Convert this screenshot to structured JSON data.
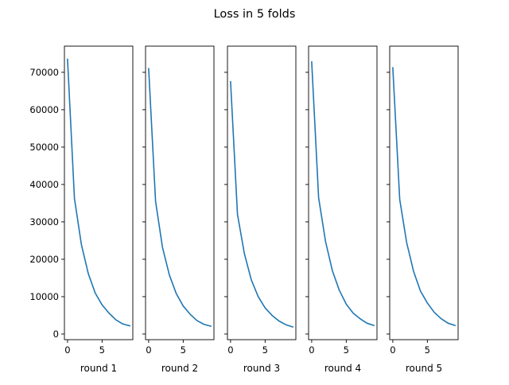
{
  "figure": {
    "title": "Loss in 5 folds"
  },
  "chart_data": {
    "type": "line",
    "title": "Loss in 5 folds",
    "sharey": true,
    "ylim": [
      -1500,
      77000
    ],
    "yticks": [
      0,
      10000,
      20000,
      30000,
      40000,
      50000,
      60000,
      70000
    ],
    "ytick_labels": [
      "0",
      "10000",
      "20000",
      "30000",
      "40000",
      "50000",
      "60000",
      "70000"
    ],
    "xlim": [
      -0.45,
      9.45
    ],
    "xticks": [
      0,
      5
    ],
    "xtick_labels": [
      "0",
      "5"
    ],
    "grid": false,
    "line_color": "#1f77b4",
    "subplots": [
      {
        "xlabel": "round 1",
        "x": [
          0,
          1,
          2,
          3,
          4,
          5,
          6,
          7,
          8,
          9
        ],
        "y": [
          73500,
          36300,
          24000,
          16200,
          11000,
          7800,
          5600,
          3800,
          2700,
          2200
        ]
      },
      {
        "xlabel": "round 2",
        "x": [
          0,
          1,
          2,
          3,
          4,
          5,
          6,
          7,
          8,
          9
        ],
        "y": [
          71000,
          35500,
          23200,
          15800,
          10800,
          7500,
          5300,
          3600,
          2600,
          2100
        ]
      },
      {
        "xlabel": "round 3",
        "x": [
          0,
          1,
          2,
          3,
          4,
          5,
          6,
          7,
          8,
          9
        ],
        "y": [
          67500,
          32000,
          21500,
          14500,
          10000,
          7000,
          5000,
          3500,
          2500,
          1900
        ]
      },
      {
        "xlabel": "round 4",
        "x": [
          0,
          1,
          2,
          3,
          4,
          5,
          6,
          7,
          8,
          9
        ],
        "y": [
          72800,
          36500,
          24800,
          16900,
          11700,
          8000,
          5600,
          4100,
          2900,
          2300
        ]
      },
      {
        "xlabel": "round 5",
        "x": [
          0,
          1,
          2,
          3,
          4,
          5,
          6,
          7,
          8,
          9
        ],
        "y": [
          71200,
          36000,
          24500,
          16800,
          11500,
          8300,
          5800,
          4100,
          2900,
          2300
        ]
      }
    ]
  }
}
